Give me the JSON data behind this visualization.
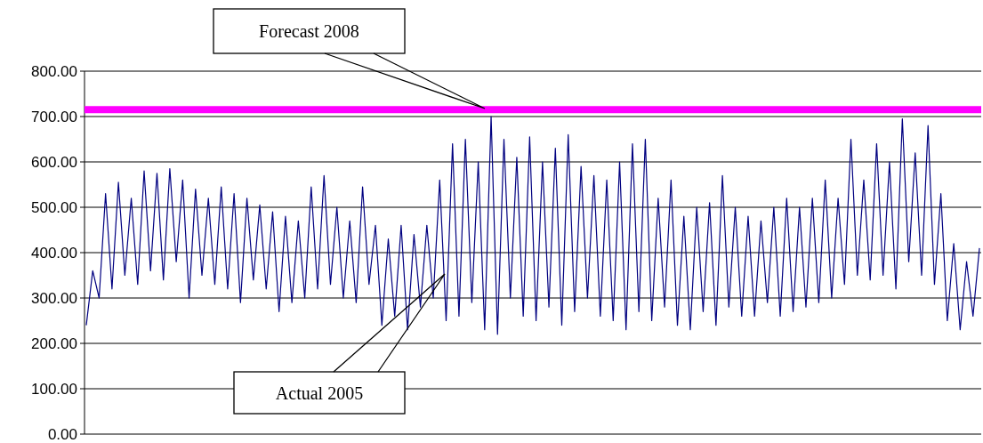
{
  "chart_data": {
    "type": "line",
    "categories": [
      null,
      null,
      null,
      null,
      null,
      null,
      null,
      null,
      null,
      null,
      null,
      null,
      null,
      null,
      null,
      null,
      null,
      null,
      null,
      null,
      null,
      null,
      null,
      null,
      null,
      null,
      null,
      null,
      null,
      null,
      null,
      null,
      null,
      null,
      null,
      null,
      null,
      null,
      null,
      null,
      null,
      null,
      null,
      null,
      null,
      null,
      null,
      null,
      null,
      null,
      null,
      null,
      null,
      null,
      null,
      null,
      null,
      null,
      null,
      null,
      null,
      null,
      null,
      null,
      null,
      null,
      null,
      null,
      null,
      null,
      null,
      null,
      null,
      null,
      null,
      null,
      null,
      null,
      null,
      null,
      null,
      null,
      null,
      null,
      null,
      null,
      null,
      null,
      null,
      null,
      null,
      null,
      null,
      null,
      null,
      null,
      null,
      null,
      null,
      null,
      null,
      null,
      null,
      null,
      null,
      null,
      null,
      null,
      null,
      null,
      null,
      null,
      null,
      null,
      null,
      null,
      null,
      null,
      null,
      null,
      null,
      null,
      null,
      null,
      null,
      null,
      null,
      null,
      null,
      null,
      null,
      null,
      null,
      null,
      null,
      null,
      null,
      null,
      null,
      null
    ],
    "series": [
      {
        "color": "#000080",
        "values": [
          240,
          360,
          300,
          530,
          320,
          555,
          350,
          520,
          330,
          580,
          360,
          575,
          340,
          585,
          380,
          560,
          300,
          540,
          350,
          520,
          330,
          545,
          320,
          530,
          290,
          520,
          340,
          505,
          320,
          490,
          270,
          480,
          290,
          470,
          300,
          545,
          320,
          570,
          330,
          500,
          300,
          470,
          290,
          545,
          330,
          460,
          240,
          430,
          260,
          460,
          230,
          440,
          280,
          460,
          300,
          560,
          250,
          640,
          260,
          650,
          290,
          600,
          230,
          700,
          220,
          650,
          300,
          610,
          260,
          655,
          250,
          600,
          280,
          630,
          240,
          660,
          270,
          590,
          300,
          570,
          260,
          560,
          250,
          600,
          230,
          640,
          270,
          650,
          250,
          520,
          280,
          560,
          240,
          480,
          230,
          500,
          270,
          510,
          240,
          570,
          280,
          500,
          260,
          480,
          260,
          470,
          290,
          500,
          260,
          520,
          270,
          500,
          280,
          520,
          290,
          560,
          300,
          520,
          330,
          650,
          350,
          560,
          340,
          640,
          350,
          600,
          320,
          695,
          380,
          620,
          350,
          680,
          330,
          530,
          250,
          420,
          230,
          380,
          260,
          410
        ]
      }
    ],
    "ylim": [
      0,
      800
    ],
    "yticks": [
      {
        "value": 0,
        "label": "0.00"
      },
      {
        "value": 100,
        "label": "100.00"
      },
      {
        "value": 200,
        "label": "200.00"
      },
      {
        "value": 300,
        "label": "300.00"
      },
      {
        "value": 400,
        "label": "400.00"
      },
      {
        "value": 500,
        "label": "500.00"
      },
      {
        "value": 600,
        "label": "600.00"
      },
      {
        "value": 700,
        "label": "700.00"
      },
      {
        "value": 800,
        "label": "800.00"
      }
    ],
    "grid": "y",
    "ref_lines": [
      {
        "axis": "y",
        "value": 715,
        "color": "#ff00ff"
      }
    ],
    "annotations": [
      "Forecast 2008",
      "Actual 2005"
    ]
  }
}
